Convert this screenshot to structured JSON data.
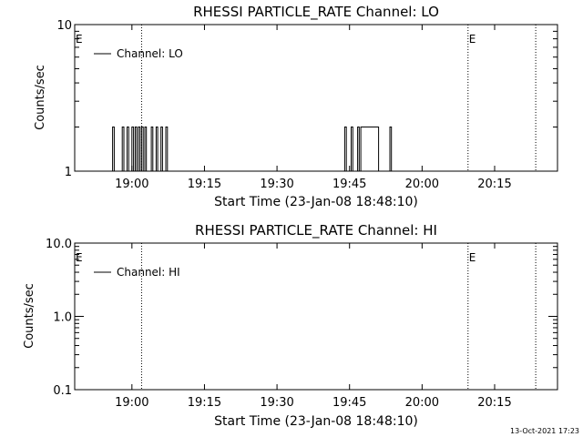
{
  "footer": {
    "timestamp": "13-Oct-2021 17:23"
  },
  "chart_data": [
    {
      "type": "line",
      "title": "RHESSI PARTICLE_RATE Channel: LO",
      "xlabel": "Start Time (23-Jan-08 18:48:10)",
      "ylabel": "Counts/sec",
      "yscale": "log",
      "ylim": [
        1,
        10
      ],
      "y_tick_labels": [
        "1",
        "10"
      ],
      "y_tick_values": [
        1,
        10
      ],
      "xlim": [
        "18:48:10",
        "20:28:00"
      ],
      "x_tick_labels": [
        "19:00",
        "19:15",
        "19:30",
        "19:45",
        "20:00",
        "20:15"
      ],
      "x_tick_times": [
        "19:00",
        "19:15",
        "19:30",
        "19:45",
        "20:00",
        "20:15"
      ],
      "legend": {
        "position": "top-left",
        "entries": [
          "Channel: LO"
        ]
      },
      "vertical_markers": [
        {
          "time": "18:48:10",
          "label": "E",
          "dotted": false
        },
        {
          "time": "19:02:00",
          "label": "",
          "dotted": true
        },
        {
          "time": "20:09:30",
          "label": "E",
          "dotted": true
        },
        {
          "time": "20:23:30",
          "label": "",
          "dotted": true
        }
      ],
      "series": [
        {
          "name": "Channel: LO",
          "points": [
            [
              "18:56:00",
              1
            ],
            [
              "18:56:00",
              2
            ],
            [
              "18:56:20",
              2
            ],
            [
              "18:56:20",
              1
            ],
            [
              "18:58:00",
              1
            ],
            [
              "18:58:00",
              2
            ],
            [
              "18:58:20",
              2
            ],
            [
              "18:58:20",
              1
            ],
            [
              "18:59:00",
              1
            ],
            [
              "18:59:00",
              2
            ],
            [
              "18:59:20",
              2
            ],
            [
              "18:59:20",
              1
            ],
            [
              "19:00:00",
              1
            ],
            [
              "19:00:00",
              2
            ],
            [
              "19:00:20",
              2
            ],
            [
              "19:00:20",
              1
            ],
            [
              "19:00:40",
              1
            ],
            [
              "19:00:40",
              2
            ],
            [
              "19:01:00",
              2
            ],
            [
              "19:01:00",
              1
            ],
            [
              "19:01:20",
              1
            ],
            [
              "19:01:20",
              2
            ],
            [
              "19:01:40",
              2
            ],
            [
              "19:01:40",
              1
            ],
            [
              "19:02:00",
              1
            ],
            [
              "19:02:00",
              2
            ],
            [
              "19:02:20",
              2
            ],
            [
              "19:02:20",
              1
            ],
            [
              "19:02:40",
              1
            ],
            [
              "19:02:40",
              2
            ],
            [
              "19:03:00",
              2
            ],
            [
              "19:03:00",
              1
            ],
            [
              "19:04:00",
              1
            ],
            [
              "19:04:00",
              2
            ],
            [
              "19:04:20",
              2
            ],
            [
              "19:04:20",
              1
            ],
            [
              "19:05:00",
              1
            ],
            [
              "19:05:00",
              2
            ],
            [
              "19:05:20",
              2
            ],
            [
              "19:05:20",
              1
            ],
            [
              "19:06:00",
              1
            ],
            [
              "19:06:00",
              2
            ],
            [
              "19:06:20",
              2
            ],
            [
              "19:06:20",
              1
            ],
            [
              "19:07:00",
              1
            ],
            [
              "19:07:00",
              2
            ],
            [
              "19:07:20",
              2
            ],
            [
              "19:07:20",
              1
            ],
            [
              "19:44:00",
              1
            ],
            [
              "19:44:00",
              2
            ],
            [
              "19:44:20",
              2
            ],
            [
              "19:44:20",
              1
            ],
            [
              "19:45:20",
              1
            ],
            [
              "19:45:20",
              2
            ],
            [
              "19:45:40",
              2
            ],
            [
              "19:45:40",
              1
            ],
            [
              "19:46:40",
              1
            ],
            [
              "19:46:40",
              2
            ],
            [
              "19:47:00",
              2
            ],
            [
              "19:47:00",
              1
            ],
            [
              "19:47:20",
              1
            ],
            [
              "19:47:20",
              2
            ],
            [
              "19:51:00",
              2
            ],
            [
              "19:51:00",
              1
            ],
            [
              "19:53:20",
              1
            ],
            [
              "19:53:20",
              2
            ],
            [
              "19:53:40",
              2
            ],
            [
              "19:53:40",
              1
            ]
          ]
        }
      ]
    },
    {
      "type": "line",
      "title": "RHESSI PARTICLE_RATE Channel: HI",
      "xlabel": "Start Time (23-Jan-08 18:48:10)",
      "ylabel": "Counts/sec",
      "yscale": "log",
      "ylim": [
        0.1,
        10
      ],
      "y_tick_labels": [
        "0.1",
        "1.0",
        "10.0"
      ],
      "y_tick_values": [
        0.1,
        1,
        10
      ],
      "xlim": [
        "18:48:10",
        "20:28:00"
      ],
      "x_tick_labels": [
        "19:00",
        "19:15",
        "19:30",
        "19:45",
        "20:00",
        "20:15"
      ],
      "x_tick_times": [
        "19:00",
        "19:15",
        "19:30",
        "19:45",
        "20:00",
        "20:15"
      ],
      "legend": {
        "position": "top-left",
        "entries": [
          "Channel: HI"
        ]
      },
      "vertical_markers": [
        {
          "time": "18:48:10",
          "label": "E",
          "dotted": false
        },
        {
          "time": "19:02:00",
          "label": "",
          "dotted": true
        },
        {
          "time": "20:09:30",
          "label": "E",
          "dotted": true
        },
        {
          "time": "20:23:30",
          "label": "",
          "dotted": true
        }
      ],
      "series": [
        {
          "name": "Channel: HI",
          "points": []
        }
      ]
    }
  ]
}
